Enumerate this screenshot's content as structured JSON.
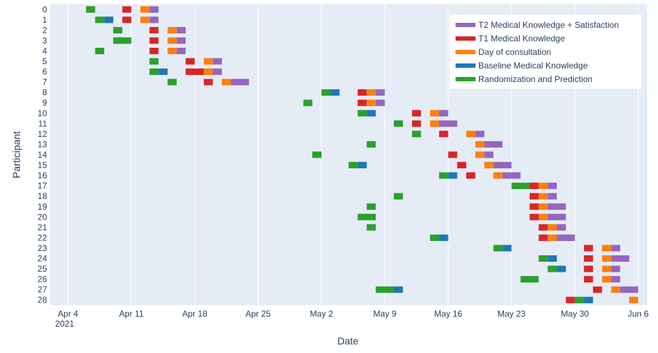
{
  "chart_data": {
    "type": "timeline",
    "xlabel": "Date",
    "ylabel": "Participant",
    "x_range": [
      "2021-04-02",
      "2021-06-07"
    ],
    "x_ticks": [
      {
        "date": "2021-04-04",
        "label": "Apr 4",
        "sub": "2021"
      },
      {
        "date": "2021-04-11",
        "label": "Apr 11"
      },
      {
        "date": "2021-04-18",
        "label": "Apr 18"
      },
      {
        "date": "2021-04-25",
        "label": "Apr 25"
      },
      {
        "date": "2021-05-02",
        "label": "May 2"
      },
      {
        "date": "2021-05-09",
        "label": "May 9"
      },
      {
        "date": "2021-05-16",
        "label": "May 16"
      },
      {
        "date": "2021-05-23",
        "label": "May 23"
      },
      {
        "date": "2021-05-30",
        "label": "May 30"
      },
      {
        "date": "2021-06-06",
        "label": "Jun 6"
      }
    ],
    "categories": [
      "0",
      "1",
      "2",
      "3",
      "4",
      "5",
      "6",
      "7",
      "8",
      "9",
      "10",
      "11",
      "12",
      "13",
      "14",
      "15",
      "16",
      "17",
      "18",
      "19",
      "20",
      "21",
      "22",
      "23",
      "24",
      "25",
      "26",
      "27",
      "28"
    ],
    "legend_position": "top-right",
    "series": [
      {
        "name": "T2 Medical Knowledge + Satisfaction",
        "color": "#9467bd",
        "tasks": [
          {
            "p": 0,
            "start": "2021-04-13",
            "end": "2021-04-14"
          },
          {
            "p": 1,
            "start": "2021-04-13",
            "end": "2021-04-14"
          },
          {
            "p": 2,
            "start": "2021-04-16",
            "end": "2021-04-17"
          },
          {
            "p": 3,
            "start": "2021-04-16",
            "end": "2021-04-17"
          },
          {
            "p": 4,
            "start": "2021-04-16",
            "end": "2021-04-17"
          },
          {
            "p": 5,
            "start": "2021-04-20",
            "end": "2021-04-21"
          },
          {
            "p": 6,
            "start": "2021-04-20",
            "end": "2021-04-21"
          },
          {
            "p": 7,
            "start": "2021-04-22",
            "end": "2021-04-24"
          },
          {
            "p": 8,
            "start": "2021-05-08",
            "end": "2021-05-09"
          },
          {
            "p": 9,
            "start": "2021-05-08",
            "end": "2021-05-09"
          },
          {
            "p": 10,
            "start": "2021-05-15",
            "end": "2021-05-16"
          },
          {
            "p": 11,
            "start": "2021-05-15",
            "end": "2021-05-17"
          },
          {
            "p": 12,
            "start": "2021-05-19",
            "end": "2021-05-20"
          },
          {
            "p": 13,
            "start": "2021-05-20",
            "end": "2021-05-22"
          },
          {
            "p": 14,
            "start": "2021-05-20",
            "end": "2021-05-21"
          },
          {
            "p": 15,
            "start": "2021-05-21",
            "end": "2021-05-23"
          },
          {
            "p": 16,
            "start": "2021-05-22",
            "end": "2021-05-24"
          },
          {
            "p": 17,
            "start": "2021-05-27",
            "end": "2021-05-28"
          },
          {
            "p": 18,
            "start": "2021-05-27",
            "end": "2021-05-28"
          },
          {
            "p": 19,
            "start": "2021-05-27",
            "end": "2021-05-29"
          },
          {
            "p": 20,
            "start": "2021-05-27",
            "end": "2021-05-29"
          },
          {
            "p": 21,
            "start": "2021-05-28",
            "end": "2021-05-29"
          },
          {
            "p": 22,
            "start": "2021-05-28",
            "end": "2021-05-30"
          },
          {
            "p": 23,
            "start": "2021-06-03",
            "end": "2021-06-04"
          },
          {
            "p": 24,
            "start": "2021-06-03",
            "end": "2021-06-05"
          },
          {
            "p": 25,
            "start": "2021-06-03",
            "end": "2021-06-04"
          },
          {
            "p": 26,
            "start": "2021-06-03",
            "end": "2021-06-04"
          },
          {
            "p": 27,
            "start": "2021-06-04",
            "end": "2021-06-06"
          }
        ]
      },
      {
        "name": "T1 Medical Knowledge",
        "color": "#d62728",
        "tasks": [
          {
            "p": 0,
            "start": "2021-04-10",
            "end": "2021-04-11"
          },
          {
            "p": 1,
            "start": "2021-04-10",
            "end": "2021-04-11"
          },
          {
            "p": 2,
            "start": "2021-04-13",
            "end": "2021-04-14"
          },
          {
            "p": 3,
            "start": "2021-04-13",
            "end": "2021-04-14"
          },
          {
            "p": 4,
            "start": "2021-04-13",
            "end": "2021-04-14"
          },
          {
            "p": 5,
            "start": "2021-04-17",
            "end": "2021-04-18"
          },
          {
            "p": 6,
            "start": "2021-04-17",
            "end": "2021-04-19"
          },
          {
            "p": 7,
            "start": "2021-04-19",
            "end": "2021-04-20"
          },
          {
            "p": 8,
            "start": "2021-05-06",
            "end": "2021-05-07"
          },
          {
            "p": 9,
            "start": "2021-05-06",
            "end": "2021-05-07"
          },
          {
            "p": 10,
            "start": "2021-05-12",
            "end": "2021-05-13"
          },
          {
            "p": 11,
            "start": "2021-05-12",
            "end": "2021-05-13"
          },
          {
            "p": 12,
            "start": "2021-05-15",
            "end": "2021-05-16"
          },
          {
            "p": 14,
            "start": "2021-05-16",
            "end": "2021-05-17"
          },
          {
            "p": 15,
            "start": "2021-05-17",
            "end": "2021-05-18"
          },
          {
            "p": 16,
            "start": "2021-05-18",
            "end": "2021-05-19"
          },
          {
            "p": 17,
            "start": "2021-05-25",
            "end": "2021-05-26"
          },
          {
            "p": 18,
            "start": "2021-05-25",
            "end": "2021-05-26"
          },
          {
            "p": 19,
            "start": "2021-05-25",
            "end": "2021-05-26"
          },
          {
            "p": 20,
            "start": "2021-05-25",
            "end": "2021-05-26"
          },
          {
            "p": 21,
            "start": "2021-05-26",
            "end": "2021-05-27"
          },
          {
            "p": 22,
            "start": "2021-05-26",
            "end": "2021-05-27"
          },
          {
            "p": 23,
            "start": "2021-05-31",
            "end": "2021-06-01"
          },
          {
            "p": 24,
            "start": "2021-05-31",
            "end": "2021-06-01"
          },
          {
            "p": 25,
            "start": "2021-05-31",
            "end": "2021-06-01"
          },
          {
            "p": 26,
            "start": "2021-05-31",
            "end": "2021-06-01"
          },
          {
            "p": 27,
            "start": "2021-06-01",
            "end": "2021-06-02"
          },
          {
            "p": 28,
            "start": "2021-05-29",
            "end": "2021-05-30"
          }
        ]
      },
      {
        "name": "Day of consultation",
        "color": "#ff7f0e",
        "tasks": [
          {
            "p": 0,
            "start": "2021-04-12",
            "end": "2021-04-13"
          },
          {
            "p": 1,
            "start": "2021-04-12",
            "end": "2021-04-13"
          },
          {
            "p": 2,
            "start": "2021-04-15",
            "end": "2021-04-16"
          },
          {
            "p": 3,
            "start": "2021-04-15",
            "end": "2021-04-16"
          },
          {
            "p": 4,
            "start": "2021-04-15",
            "end": "2021-04-16"
          },
          {
            "p": 5,
            "start": "2021-04-19",
            "end": "2021-04-20"
          },
          {
            "p": 6,
            "start": "2021-04-19",
            "end": "2021-04-20"
          },
          {
            "p": 7,
            "start": "2021-04-21",
            "end": "2021-04-22"
          },
          {
            "p": 8,
            "start": "2021-05-07",
            "end": "2021-05-08"
          },
          {
            "p": 9,
            "start": "2021-05-07",
            "end": "2021-05-08"
          },
          {
            "p": 10,
            "start": "2021-05-14",
            "end": "2021-05-15"
          },
          {
            "p": 11,
            "start": "2021-05-14",
            "end": "2021-05-15"
          },
          {
            "p": 12,
            "start": "2021-05-18",
            "end": "2021-05-19"
          },
          {
            "p": 13,
            "start": "2021-05-19",
            "end": "2021-05-20"
          },
          {
            "p": 14,
            "start": "2021-05-19",
            "end": "2021-05-20"
          },
          {
            "p": 15,
            "start": "2021-05-20",
            "end": "2021-05-21"
          },
          {
            "p": 16,
            "start": "2021-05-21",
            "end": "2021-05-22"
          },
          {
            "p": 17,
            "start": "2021-05-26",
            "end": "2021-05-27"
          },
          {
            "p": 18,
            "start": "2021-05-26",
            "end": "2021-05-27"
          },
          {
            "p": 19,
            "start": "2021-05-26",
            "end": "2021-05-27"
          },
          {
            "p": 20,
            "start": "2021-05-26",
            "end": "2021-05-27"
          },
          {
            "p": 21,
            "start": "2021-05-27",
            "end": "2021-05-28"
          },
          {
            "p": 22,
            "start": "2021-05-27",
            "end": "2021-05-28"
          },
          {
            "p": 23,
            "start": "2021-06-02",
            "end": "2021-06-03"
          },
          {
            "p": 24,
            "start": "2021-06-02",
            "end": "2021-06-03"
          },
          {
            "p": 25,
            "start": "2021-06-02",
            "end": "2021-06-03"
          },
          {
            "p": 26,
            "start": "2021-06-02",
            "end": "2021-06-03"
          },
          {
            "p": 27,
            "start": "2021-06-03",
            "end": "2021-06-04"
          },
          {
            "p": 28,
            "start": "2021-06-05",
            "end": "2021-06-06"
          }
        ]
      },
      {
        "name": "Baseline Medical Knowledge",
        "color": "#1f77b4",
        "tasks": [
          {
            "p": 1,
            "start": "2021-04-08",
            "end": "2021-04-09"
          },
          {
            "p": 3,
            "start": "2021-04-09",
            "end": "2021-04-10"
          },
          {
            "p": 6,
            "start": "2021-04-14",
            "end": "2021-04-15"
          },
          {
            "p": 8,
            "start": "2021-05-03",
            "end": "2021-05-04"
          },
          {
            "p": 10,
            "start": "2021-05-07",
            "end": "2021-05-08"
          },
          {
            "p": 14,
            "start": "2021-05-01",
            "end": "2021-05-02"
          },
          {
            "p": 15,
            "start": "2021-05-06",
            "end": "2021-05-07"
          },
          {
            "p": 16,
            "start": "2021-05-16",
            "end": "2021-05-17"
          },
          {
            "p": 22,
            "start": "2021-05-15",
            "end": "2021-05-16"
          },
          {
            "p": 23,
            "start": "2021-05-22",
            "end": "2021-05-23"
          },
          {
            "p": 24,
            "start": "2021-05-27",
            "end": "2021-05-28"
          },
          {
            "p": 25,
            "start": "2021-05-28",
            "end": "2021-05-29"
          },
          {
            "p": 27,
            "start": "2021-05-10",
            "end": "2021-05-11"
          },
          {
            "p": 28,
            "start": "2021-05-31",
            "end": "2021-06-01"
          }
        ]
      },
      {
        "name": "Randomization and Prediction",
        "color": "#2ca02c",
        "tasks": [
          {
            "p": 0,
            "start": "2021-04-06",
            "end": "2021-04-07"
          },
          {
            "p": 1,
            "start": "2021-04-07",
            "end": "2021-04-08"
          },
          {
            "p": 2,
            "start": "2021-04-09",
            "end": "2021-04-10"
          },
          {
            "p": 3,
            "start": "2021-04-09",
            "end": "2021-04-11"
          },
          {
            "p": 4,
            "start": "2021-04-07",
            "end": "2021-04-08"
          },
          {
            "p": 5,
            "start": "2021-04-13",
            "end": "2021-04-14"
          },
          {
            "p": 6,
            "start": "2021-04-13",
            "end": "2021-04-14"
          },
          {
            "p": 7,
            "start": "2021-04-15",
            "end": "2021-04-16"
          },
          {
            "p": 8,
            "start": "2021-05-02",
            "end": "2021-05-03"
          },
          {
            "p": 9,
            "start": "2021-04-30",
            "end": "2021-05-01"
          },
          {
            "p": 10,
            "start": "2021-05-06",
            "end": "2021-05-07"
          },
          {
            "p": 11,
            "start": "2021-05-10",
            "end": "2021-05-11"
          },
          {
            "p": 12,
            "start": "2021-05-12",
            "end": "2021-05-13"
          },
          {
            "p": 13,
            "start": "2021-05-07",
            "end": "2021-05-08"
          },
          {
            "p": 14,
            "start": "2021-05-01",
            "end": "2021-05-02"
          },
          {
            "p": 15,
            "start": "2021-05-05",
            "end": "2021-05-06"
          },
          {
            "p": 16,
            "start": "2021-05-15",
            "end": "2021-05-16"
          },
          {
            "p": 17,
            "start": "2021-05-23",
            "end": "2021-05-25"
          },
          {
            "p": 18,
            "start": "2021-05-10",
            "end": "2021-05-11"
          },
          {
            "p": 19,
            "start": "2021-05-07",
            "end": "2021-05-08"
          },
          {
            "p": 20,
            "start": "2021-05-06",
            "end": "2021-05-08"
          },
          {
            "p": 21,
            "start": "2021-05-07",
            "end": "2021-05-08"
          },
          {
            "p": 22,
            "start": "2021-05-14",
            "end": "2021-05-15"
          },
          {
            "p": 23,
            "start": "2021-05-21",
            "end": "2021-05-22"
          },
          {
            "p": 24,
            "start": "2021-05-26",
            "end": "2021-05-27"
          },
          {
            "p": 25,
            "start": "2021-05-27",
            "end": "2021-05-28"
          },
          {
            "p": 26,
            "start": "2021-05-24",
            "end": "2021-05-26"
          },
          {
            "p": 27,
            "start": "2021-05-08",
            "end": "2021-05-10"
          },
          {
            "p": 28,
            "start": "2021-05-30",
            "end": "2021-05-31"
          }
        ]
      }
    ]
  }
}
